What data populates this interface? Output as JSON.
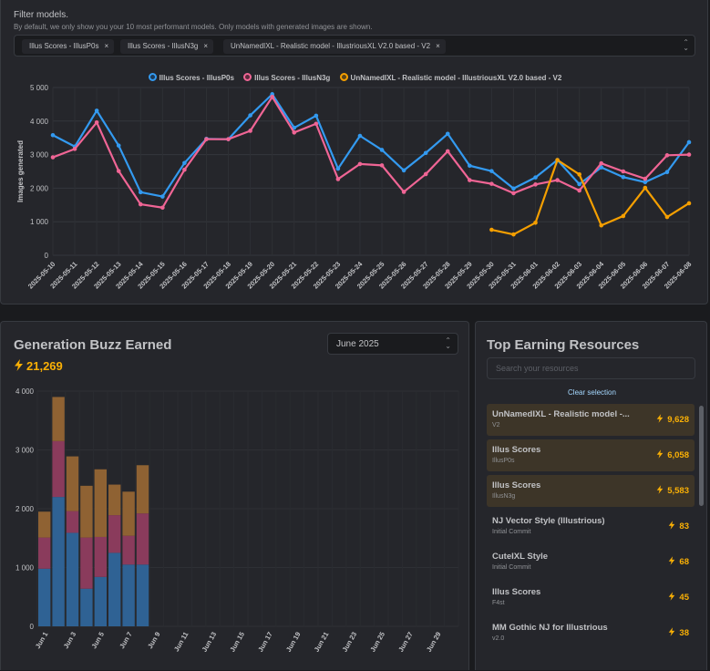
{
  "filter": {
    "title": "Filter models.",
    "description": "By default, we only show you your 10 most performant models. Only models with generated images are shown.",
    "chips": [
      "Illus Scores - IllusP0s",
      "Illus Scores - IllusN3g",
      "UnNamedIXL - Realistic model - IllustriousXL V2.0 based - V2"
    ],
    "remove_glyph": "×"
  },
  "chart_data": [
    {
      "type": "line",
      "ylabel": "Images generated",
      "ylim": [
        0,
        5000
      ],
      "yticks": [
        0,
        1000,
        2000,
        3000,
        4000,
        5000
      ],
      "ytick_labels": [
        "0",
        "1 000",
        "2 000",
        "3 000",
        "4 000",
        "5 000"
      ],
      "grid": true,
      "legend_position": "top-center",
      "x": [
        "2025-05-10",
        "2025-05-11",
        "2025-05-12",
        "2025-05-13",
        "2025-05-14",
        "2025-05-15",
        "2025-05-16",
        "2025-05-17",
        "2025-05-18",
        "2025-05-19",
        "2025-05-20",
        "2025-05-21",
        "2025-05-22",
        "2025-05-23",
        "2025-05-24",
        "2025-05-25",
        "2025-05-26",
        "2025-05-27",
        "2025-05-28",
        "2025-05-29",
        "2025-05-30",
        "2025-05-31",
        "2025-06-01",
        "2025-06-02",
        "2025-06-03",
        "2025-06-04",
        "2025-06-05",
        "2025-06-06",
        "2025-06-07",
        "2025-06-08"
      ],
      "series": [
        {
          "name": "Illus Scores - IllusP0s",
          "color": "#339af0",
          "values": [
            3580,
            3240,
            4310,
            3270,
            1880,
            1750,
            2750,
            3470,
            3460,
            4170,
            4800,
            3800,
            4160,
            2580,
            3560,
            3140,
            2530,
            3050,
            3620,
            2670,
            2510,
            1990,
            2320,
            2840,
            2120,
            2620,
            2330,
            2180,
            2480,
            3370
          ]
        },
        {
          "name": "Illus Scores - IllusN3g",
          "color": "#f06595",
          "values": [
            2920,
            3170,
            3960,
            2510,
            1520,
            1420,
            2550,
            3460,
            3460,
            3710,
            4720,
            3660,
            3920,
            2270,
            2720,
            2680,
            1890,
            2420,
            3100,
            2240,
            2130,
            1850,
            2110,
            2240,
            1930,
            2740,
            2500,
            2280,
            2980,
            3000
          ]
        },
        {
          "name": "UnNamedIXL - Realistic model - IllustriousXL V2.0 based - V2",
          "color": "#f59f00",
          "values": [
            null,
            null,
            null,
            null,
            null,
            null,
            null,
            null,
            null,
            null,
            null,
            null,
            null,
            null,
            null,
            null,
            null,
            null,
            null,
            null,
            760,
            620,
            970,
            2840,
            2410,
            890,
            1170,
            2010,
            1140,
            1550
          ]
        }
      ]
    },
    {
      "type": "bar",
      "stacked": true,
      "ylim": [
        0,
        4000
      ],
      "yticks": [
        0,
        1000,
        2000,
        3000,
        4000
      ],
      "ytick_labels": [
        "0",
        "1 000",
        "2 000",
        "3 000",
        "4 000"
      ],
      "grid": true,
      "categories": [
        "Jun 1",
        "Jun 2",
        "Jun 3",
        "Jun 4",
        "Jun 5",
        "Jun 6",
        "Jun 7",
        "Jun 8",
        "Jun 9",
        "Jun 10",
        "Jun 11",
        "Jun 12",
        "Jun 13",
        "Jun 14",
        "Jun 15",
        "Jun 16",
        "Jun 17",
        "Jun 18",
        "Jun 19",
        "Jun 20",
        "Jun 21",
        "Jun 22",
        "Jun 23",
        "Jun 24",
        "Jun 25",
        "Jun 26",
        "Jun 27",
        "Jun 28",
        "Jun 29",
        "Jun 30"
      ],
      "tick_labels": [
        "Jun 1",
        "Jun 3",
        "Jun 5",
        "Jun 7",
        "Jun 9",
        "Jun 11",
        "Jun 13",
        "Jun 15",
        "Jun 17",
        "Jun 19",
        "Jun 21",
        "Jun 23",
        "Jun 25",
        "Jun 27",
        "Jun 29"
      ],
      "series": [
        {
          "color": "#2f6294",
          "values": [
            980,
            2200,
            1590,
            640,
            840,
            1250,
            1050,
            1050,
            0,
            0,
            0,
            0,
            0,
            0,
            0,
            0,
            0,
            0,
            0,
            0,
            0,
            0,
            0,
            0,
            0,
            0,
            0,
            0,
            0,
            0
          ]
        },
        {
          "color": "#8a3b5c",
          "values": [
            530,
            950,
            370,
            870,
            680,
            640,
            490,
            870,
            0,
            0,
            0,
            0,
            0,
            0,
            0,
            0,
            0,
            0,
            0,
            0,
            0,
            0,
            0,
            0,
            0,
            0,
            0,
            0,
            0,
            0
          ]
        },
        {
          "color": "#8f6233",
          "values": [
            440,
            750,
            930,
            880,
            1150,
            520,
            750,
            820,
            0,
            0,
            0,
            0,
            0,
            0,
            0,
            0,
            0,
            0,
            0,
            0,
            0,
            0,
            0,
            0,
            0,
            0,
            0,
            0,
            0,
            0
          ]
        }
      ]
    }
  ],
  "buzz": {
    "title": "Generation Buzz Earned",
    "total": "21,269",
    "month": "June 2025"
  },
  "resources": {
    "title": "Top Earning Resources",
    "search_placeholder": "Search your resources",
    "clear_label": "Clear selection",
    "items": [
      {
        "name": "UnNamedIXL - Realistic model -...",
        "version": "V2",
        "value": "9,628",
        "selected": true
      },
      {
        "name": "Illus Scores",
        "version": "IllusP0s",
        "value": "6,058",
        "selected": true
      },
      {
        "name": "Illus Scores",
        "version": "IllusN3g",
        "value": "5,583",
        "selected": true
      },
      {
        "name": "NJ Vector Style (Illustrious)",
        "version": "Initial Commit",
        "value": "83",
        "selected": false
      },
      {
        "name": "CuteIXL Style",
        "version": "Initial Commit",
        "value": "68",
        "selected": false
      },
      {
        "name": "Illus Scores",
        "version": "F4st",
        "value": "45",
        "selected": false
      },
      {
        "name": "MM Gothic NJ for Illustrious",
        "version": "v2.0",
        "value": "38",
        "selected": false
      }
    ]
  },
  "colors": {
    "accent": "#fab005",
    "link": "#a5d8ff",
    "background": "#1a1b1e",
    "card": "#25262b"
  },
  "icons": {
    "bolt": "bolt-icon",
    "select": "chevron-updown-icon",
    "remove": "close-icon"
  }
}
